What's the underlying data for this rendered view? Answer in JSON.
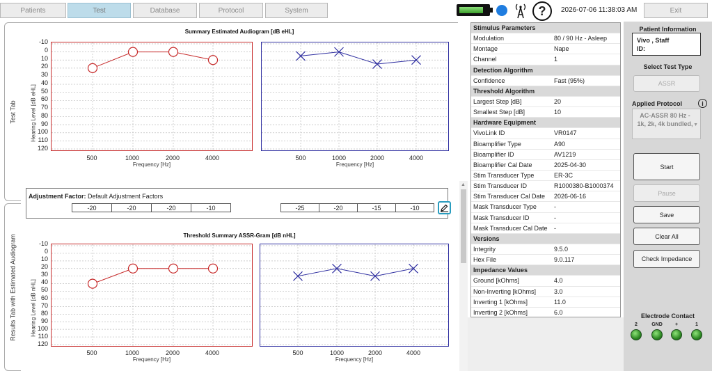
{
  "nav": {
    "tabs": [
      {
        "label": "Patients"
      },
      {
        "label": "Test"
      },
      {
        "label": "Database"
      },
      {
        "label": "Protocol"
      },
      {
        "label": "System"
      }
    ],
    "active_tab": "Test",
    "datetime": "2026-07-06 11:38:03 AM",
    "exit_label": "Exit",
    "help_label": "?",
    "battery_level": 0.85
  },
  "side_tabs": {
    "test_tab": "Test Tab",
    "results_tab": "Results Tab with Estimated Audiogram"
  },
  "summary_chart": {
    "title": "Summary Estimated Audiogram [dB eHL]",
    "ylabel": "Hearing Level [dB eHL]",
    "xlabel": "Frequency [Hz]",
    "y_ticks": [
      "-10",
      "0",
      "10",
      "20",
      "30",
      "40",
      "50",
      "60",
      "70",
      "80",
      "90",
      "100",
      "110",
      "120"
    ],
    "x_ticks": [
      "500",
      "1000",
      "2000",
      "4000"
    ]
  },
  "adjustment": {
    "label": "Adjustment Factor:",
    "value": "Default Adjustment Factors",
    "left_values": [
      "-20",
      "-20",
      "-20",
      "-10"
    ],
    "right_values": [
      "-25",
      "-20",
      "-15",
      "-10"
    ]
  },
  "threshold_chart": {
    "title": "Threshold Summary ASSR-Gram [dB nHL]",
    "ylabel": "Hearing Level [dB nHL]",
    "xlabel": "Frequency [Hz]",
    "y_ticks": [
      "-10",
      "0",
      "10",
      "20",
      "30",
      "40",
      "50",
      "60",
      "70",
      "80",
      "90",
      "100",
      "110",
      "120"
    ],
    "x_ticks": [
      "500",
      "1000",
      "2000",
      "4000"
    ]
  },
  "chart_data": [
    {
      "type": "line",
      "title": "Summary Estimated Audiogram [dB eHL]",
      "xlabel": "Frequency [Hz]",
      "ylabel": "Hearing Level [dB eHL]",
      "ylim": [
        120,
        -10
      ],
      "categories": [
        "500",
        "1000",
        "2000",
        "4000"
      ],
      "series": [
        {
          "values": [
            20,
            0,
            0,
            10
          ],
          "color": "#c62828",
          "marker": "circle"
        },
        {
          "values": [
            5,
            0,
            15,
            10
          ],
          "color": "#2e2ea0",
          "marker": "x"
        }
      ]
    },
    {
      "type": "line",
      "title": "Threshold Summary ASSR-Gram [dB nHL]",
      "xlabel": "Frequency [Hz]",
      "ylabel": "Hearing Level [dB nHL]",
      "ylim": [
        120,
        -10
      ],
      "categories": [
        "500",
        "1000",
        "2000",
        "4000"
      ],
      "series": [
        {
          "values": [
            40,
            20,
            20,
            20
          ],
          "color": "#c62828",
          "marker": "circle"
        },
        {
          "values": [
            30,
            20,
            30,
            20
          ],
          "color": "#2e2ea0",
          "marker": "x"
        }
      ]
    }
  ],
  "params": {
    "rows": [
      {
        "section": "Stimulus Parameters"
      },
      {
        "k": "Modulation",
        "v": "80 / 90 Hz - Asleep"
      },
      {
        "k": "Montage",
        "v": "Nape"
      },
      {
        "k": "Channel",
        "v": "1"
      },
      {
        "section": "Detection Algorithm"
      },
      {
        "k": "Confidence",
        "v": "Fast (95%)"
      },
      {
        "section": "Threshold Algorithm"
      },
      {
        "k": "Largest Step [dB]",
        "v": "20"
      },
      {
        "k": "Smallest Step [dB]",
        "v": "10"
      },
      {
        "section": "Hardware Equipment"
      },
      {
        "k": "VivoLink ID",
        "v": "VR0147"
      },
      {
        "k": "Bioamplifier Type",
        "v": "A90"
      },
      {
        "k": "Bioamplifier ID",
        "v": "AV1219"
      },
      {
        "k": "Bioamplifier Cal Date",
        "v": "2025-04-30"
      },
      {
        "k": "Stim Transducer Type",
        "v": "ER-3C"
      },
      {
        "k": "Stim Transducer ID",
        "v": "R1000380-B1000374"
      },
      {
        "k": "Stim Transducer Cal Date",
        "v": "2026-06-16"
      },
      {
        "k": "Mask Transducer Type",
        "v": "-"
      },
      {
        "k": "Mask Transducer ID",
        "v": "-"
      },
      {
        "k": "Mask Transducer Cal Date",
        "v": "-"
      },
      {
        "section": "Versions"
      },
      {
        "k": "Integrity",
        "v": "9.5.0"
      },
      {
        "k": "Hex File",
        "v": "9.0.117"
      },
      {
        "section": "Impedance Values"
      },
      {
        "k": "Ground [kOhms]",
        "v": "4.0"
      },
      {
        "k": "Non-Inverting [kOhms]",
        "v": "3.0"
      },
      {
        "k": "Inverting 1 [kOhms]",
        "v": "11.0"
      },
      {
        "k": "Inverting 2 [kOhms]",
        "v": "6.0"
      }
    ]
  },
  "right_panel": {
    "patient_info_title": "Patient Information",
    "patient_name": "Vivo , Staff",
    "patient_id_label": "ID:",
    "select_test_type": "Select Test Type",
    "test_type_button": "ASSR",
    "applied_protocol": "Applied Protocol",
    "protocol_value": "AC-ASSR 80 Hz - 1k, 2k, 4k bundled,",
    "start": "Start",
    "pause": "Pause",
    "save": "Save",
    "clear_all": "Clear All",
    "check_impedance": "Check Impedance",
    "electrode_contact": "Electrode Contact",
    "electrodes": [
      "2",
      "GND",
      "+",
      "1"
    ]
  }
}
